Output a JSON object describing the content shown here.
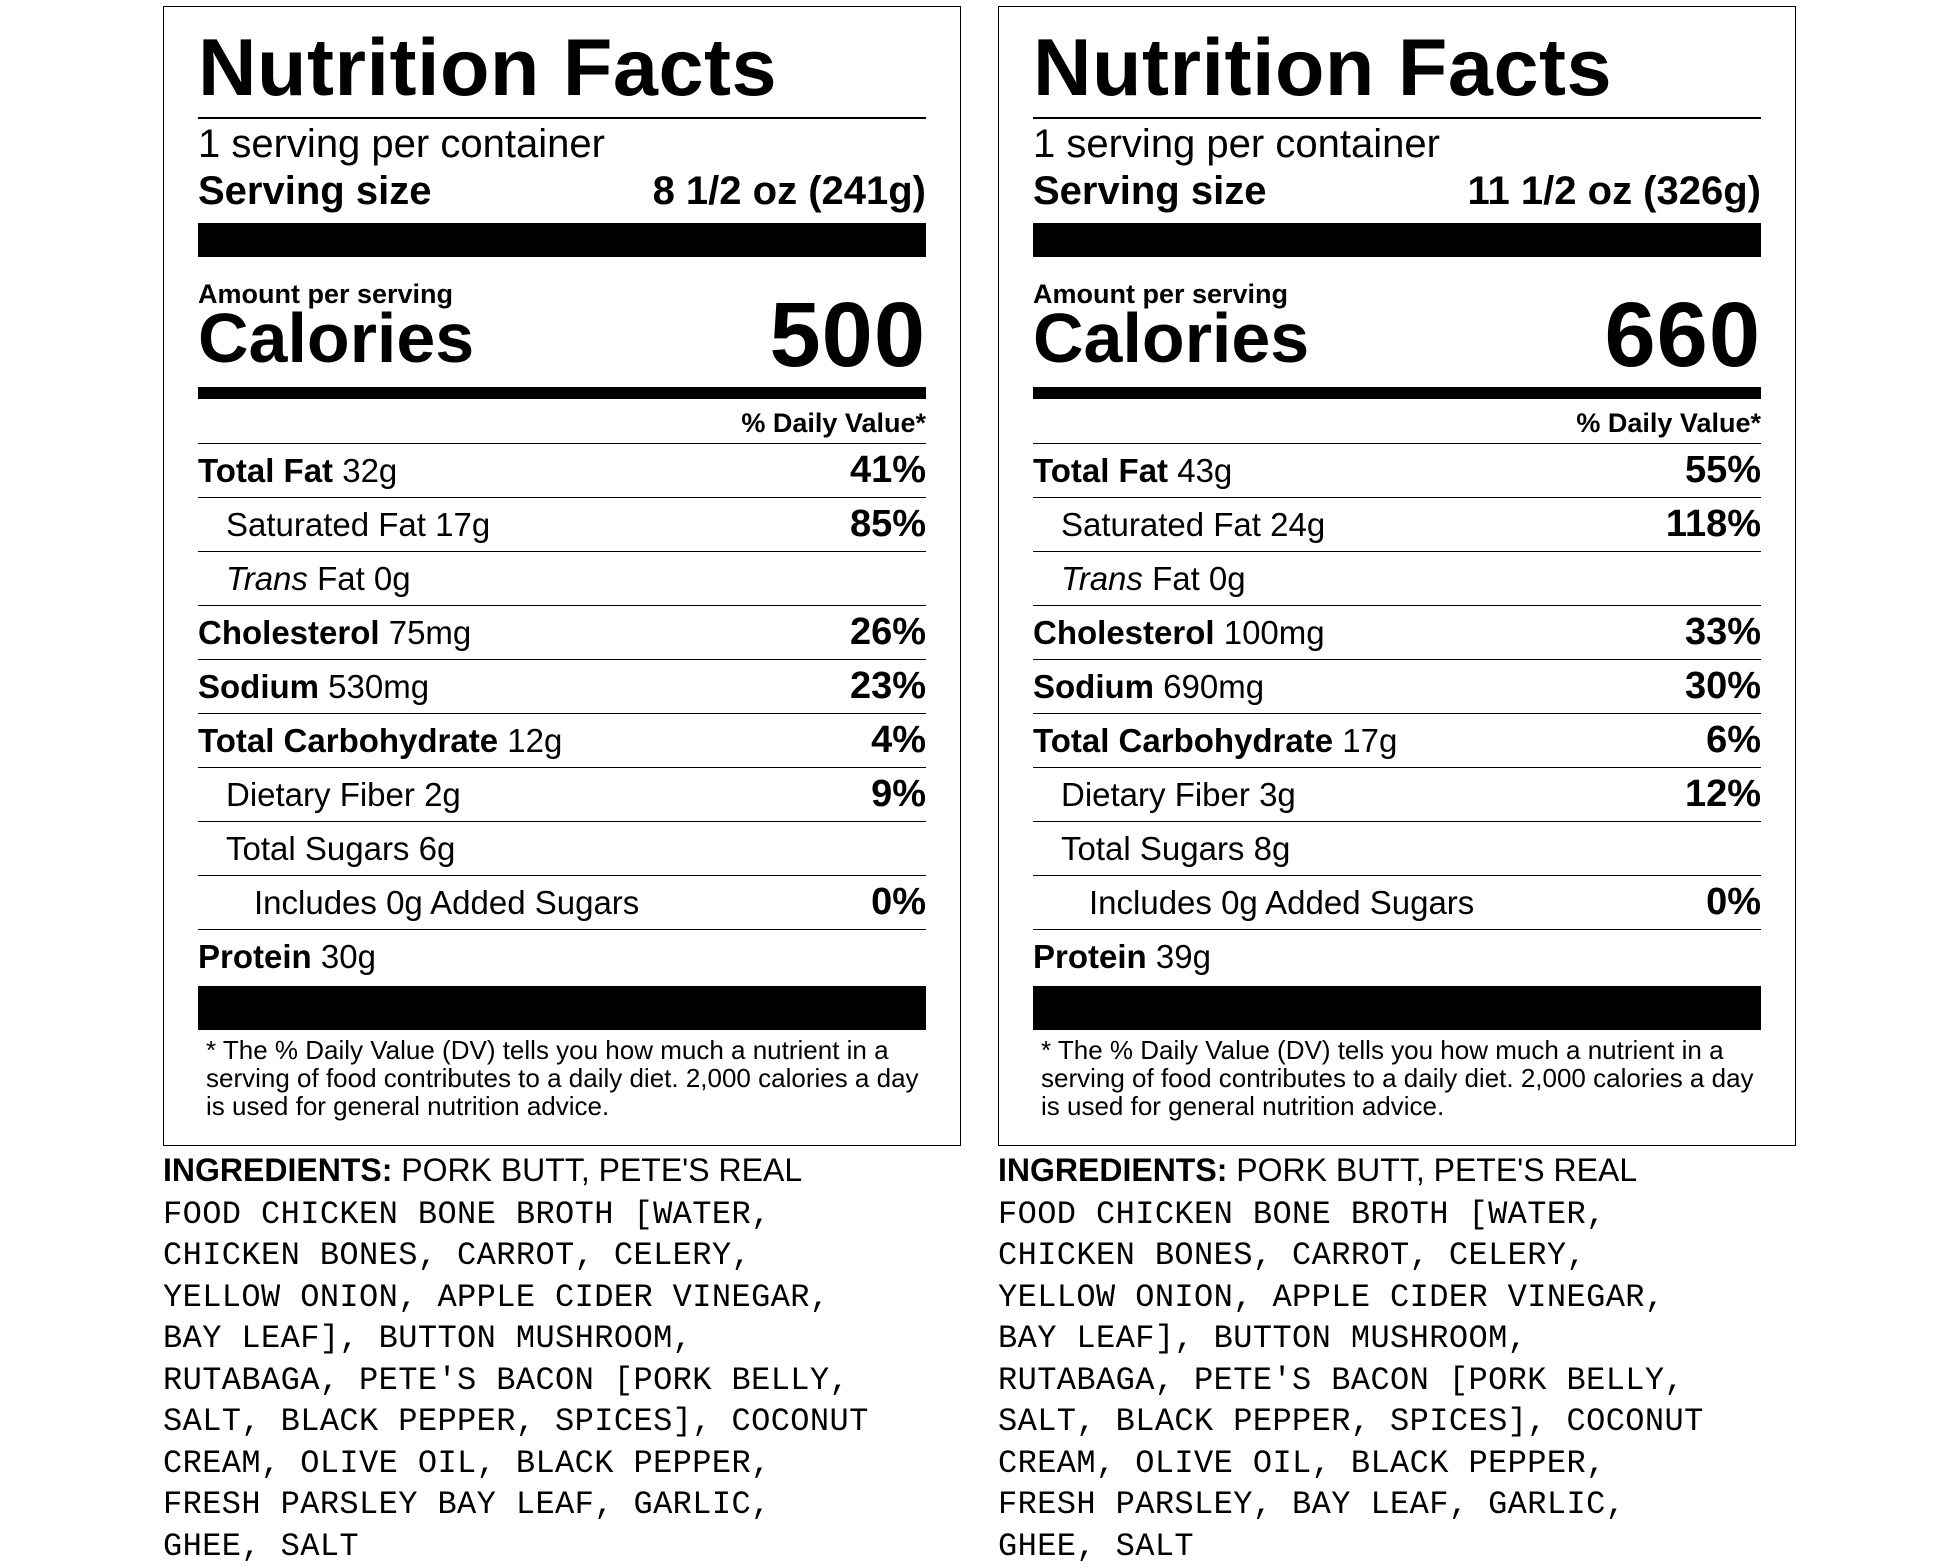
{
  "labels": [
    {
      "title": "Nutrition Facts",
      "servings_per_container": "1 serving per container",
      "serving_size_label": "Serving size",
      "serving_size_value": "8 1/2 oz (241g)",
      "amount_per_serving": "Amount per serving",
      "calories_label": "Calories",
      "calories_value": "500",
      "dv_header": "% Daily Value*",
      "nutrients": [
        {
          "name": "Total Fat",
          "amount": "32g",
          "dv": "41%"
        },
        {
          "name": "Saturated Fat",
          "amount": "17g",
          "dv": "85%"
        },
        {
          "name": "Trans",
          "amount": "Fat 0g",
          "dv": ""
        },
        {
          "name": "Cholesterol",
          "amount": "75mg",
          "dv": "26%"
        },
        {
          "name": "Sodium",
          "amount": "530mg",
          "dv": "23%"
        },
        {
          "name": "Total Carbohydrate",
          "amount": "12g",
          "dv": "4%"
        },
        {
          "name": "Dietary Fiber",
          "amount": "2g",
          "dv": "9%"
        },
        {
          "name": "Total Sugars",
          "amount": "6g",
          "dv": ""
        },
        {
          "name": "Includes 0g Added Sugars",
          "amount": "",
          "dv": "0%"
        },
        {
          "name": "Protein",
          "amount": "30g",
          "dv": ""
        }
      ],
      "footnote": "* The % Daily Value (DV) tells you how much a nutrient in a serving of food contributes to a daily diet. 2,000 calories a day is used for general nutrition advice.",
      "ingredients_label": "INGREDIENTS:",
      "ingredients_first_line": " PORK BUTT, PETE'S REAL",
      "ingredients_rest": "FOOD CHICKEN BONE BROTH [WATER,\nCHICKEN BONES, CARROT, CELERY,\nYELLOW ONION, APPLE CIDER VINEGAR,\nBAY LEAF], BUTTON MUSHROOM,\nRUTABAGA, PETE'S BACON [PORK BELLY,\nSALT, BLACK PEPPER, SPICES], COCONUT\nCREAM, OLIVE OIL, BLACK PEPPER,\nFRESH PARSLEY BAY LEAF, GARLIC,\nGHEE, SALT"
    },
    {
      "title": "Nutrition Facts",
      "servings_per_container": "1 serving per container",
      "serving_size_label": "Serving size",
      "serving_size_value": "11 1/2 oz (326g)",
      "amount_per_serving": "Amount per serving",
      "calories_label": "Calories",
      "calories_value": "660",
      "dv_header": "% Daily Value*",
      "nutrients": [
        {
          "name": "Total Fat",
          "amount": "43g",
          "dv": "55%"
        },
        {
          "name": "Saturated Fat",
          "amount": "24g",
          "dv": "118%"
        },
        {
          "name": "Trans",
          "amount": "Fat 0g",
          "dv": ""
        },
        {
          "name": "Cholesterol",
          "amount": "100mg",
          "dv": "33%"
        },
        {
          "name": "Sodium",
          "amount": "690mg",
          "dv": "30%"
        },
        {
          "name": "Total Carbohydrate",
          "amount": "17g",
          "dv": "6%"
        },
        {
          "name": "Dietary Fiber",
          "amount": "3g",
          "dv": "12%"
        },
        {
          "name": "Total Sugars",
          "amount": "8g",
          "dv": ""
        },
        {
          "name": "Includes 0g Added Sugars",
          "amount": "",
          "dv": "0%"
        },
        {
          "name": "Protein",
          "amount": "39g",
          "dv": ""
        }
      ],
      "footnote": "* The % Daily Value (DV) tells you how much a nutrient in a serving of food contributes to a daily diet. 2,000 calories a day is used for general nutrition advice.",
      "ingredients_label": "INGREDIENTS:",
      "ingredients_first_line": " PORK BUTT, PETE'S REAL",
      "ingredients_rest": "FOOD CHICKEN BONE BROTH [WATER,\nCHICKEN BONES, CARROT, CELERY,\nYELLOW ONION, APPLE CIDER VINEGAR,\nBAY LEAF], BUTTON MUSHROOM,\nRUTABAGA, PETE'S BACON [PORK BELLY,\nSALT, BLACK PEPPER, SPICES], COCONUT\nCREAM, OLIVE OIL, BLACK PEPPER,\nFRESH PARSLEY, BAY LEAF, GARLIC,\nGHEE, SALT"
    }
  ]
}
